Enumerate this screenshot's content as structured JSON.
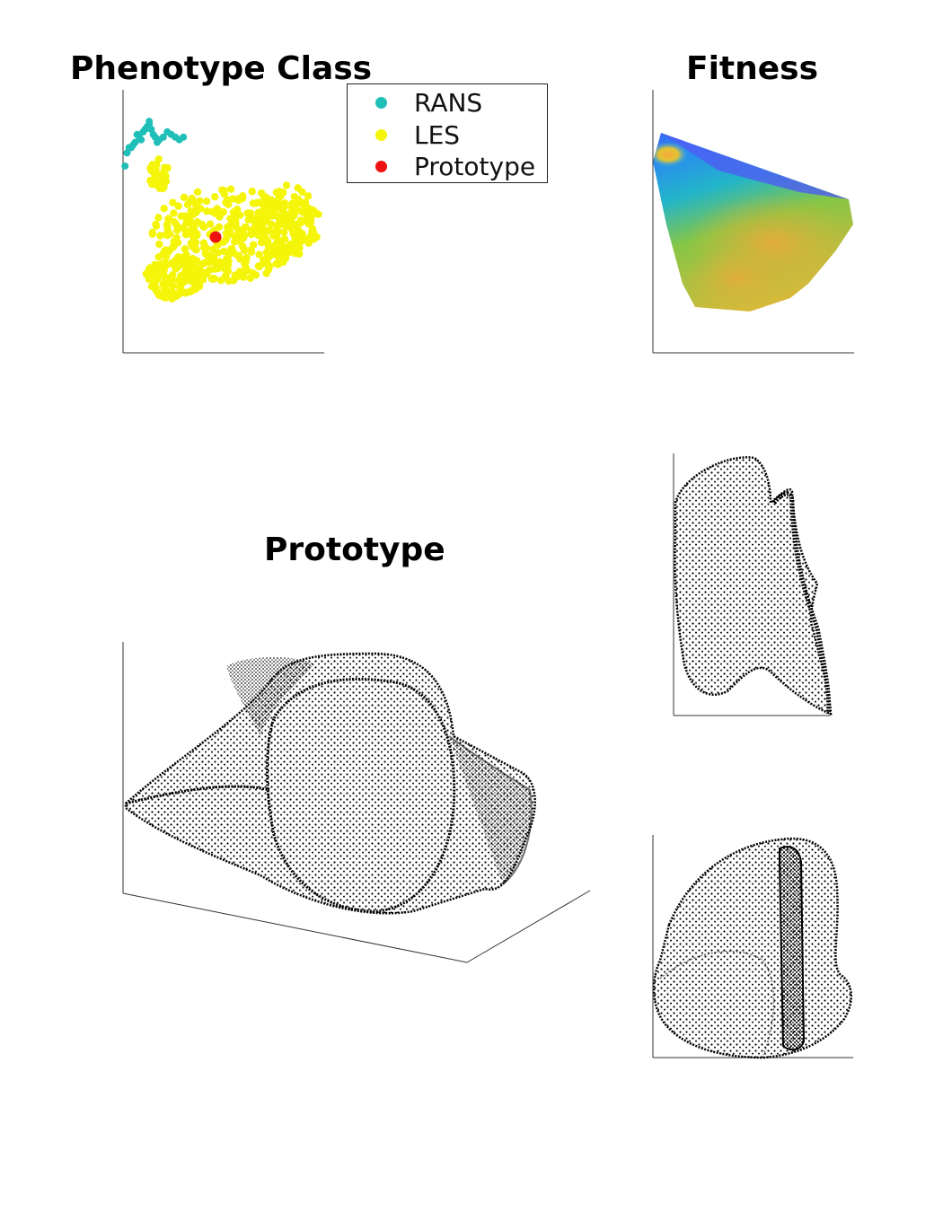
{
  "titles": {
    "phenotype": "Phenotype Class",
    "fitness": "Fitness",
    "prototype": "Prototype"
  },
  "legend": [
    {
      "label": "RANS",
      "color": "#1fbfb8"
    },
    {
      "label": "LES",
      "color": "#f5f50a"
    },
    {
      "label": "Prototype",
      "color": "#ee1111"
    }
  ],
  "chart_data": [
    {
      "type": "scatter",
      "title": "Phenotype Class",
      "xlabel": "",
      "ylabel": "",
      "xlim": [
        0,
        100
      ],
      "ylim": [
        0,
        100
      ],
      "grid": false,
      "legend_position": "top-right",
      "series": [
        {
          "name": "RANS",
          "color": "#1fbfb8",
          "x": [
            4,
            6,
            8,
            10,
            12,
            13,
            14,
            15,
            16,
            18,
            20,
            22,
            24,
            26,
            28,
            30,
            5,
            9,
            11,
            7,
            3,
            1,
            2,
            13,
            17
          ],
          "y": [
            78,
            80,
            82,
            84,
            86,
            87,
            85,
            83,
            82,
            81,
            82,
            84,
            83,
            82,
            81,
            82,
            79,
            81,
            85,
            83,
            78,
            71,
            76,
            88,
            80
          ]
        },
        {
          "name": "LES",
          "color": "#f5f50a",
          "x": [],
          "y": [],
          "approx_count": 600,
          "region": "broad cluster spanning x≈10–100, y≈15–75"
        },
        {
          "name": "Prototype",
          "color": "#ee1111",
          "x": [
            46
          ],
          "y": [
            44
          ]
        }
      ]
    },
    {
      "type": "heatmap",
      "title": "Fitness",
      "colormap": "parula",
      "grid": false
    },
    {
      "type": "scatter",
      "title": "Prototype",
      "subtype": "3d-point-cloud",
      "views": [
        "isometric",
        "side",
        "front"
      ],
      "point_color": "#000000"
    }
  ]
}
